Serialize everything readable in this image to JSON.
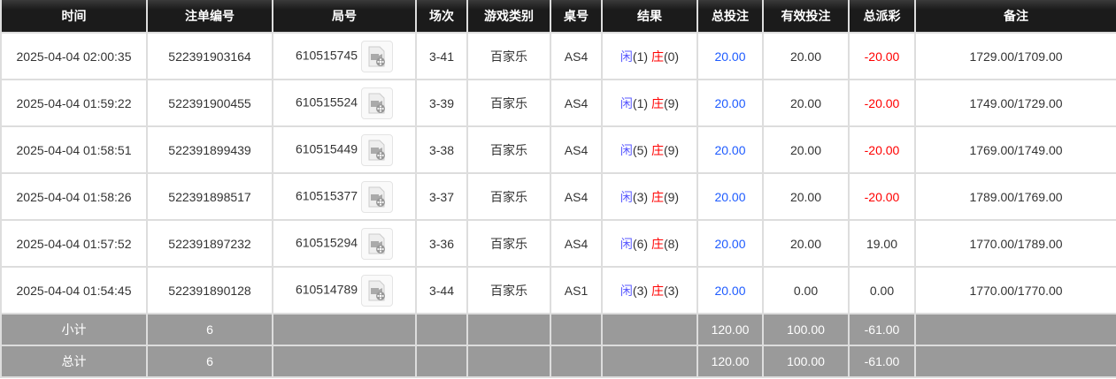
{
  "headers": [
    "时间",
    "注单编号",
    "局号",
    "场次",
    "游戏类别",
    "桌号",
    "结果",
    "总投注",
    "有效投注",
    "总派彩",
    "备注"
  ],
  "rows": [
    {
      "time": "2025-04-04 02:00:35",
      "bet_id": "522391903164",
      "round": "610515745",
      "shoe": "3-41",
      "game": "百家乐",
      "table": "AS4",
      "player_label": "闲",
      "player": "(1)",
      "banker_label": "庄",
      "banker": "(0)",
      "total_bet": "20.00",
      "valid_bet": "20.00",
      "payout": "-20.00",
      "note": "1729.00/1709.00"
    },
    {
      "time": "2025-04-04 01:59:22",
      "bet_id": "522391900455",
      "round": "610515524",
      "shoe": "3-39",
      "game": "百家乐",
      "table": "AS4",
      "player_label": "闲",
      "player": "(1)",
      "banker_label": "庄",
      "banker": "(9)",
      "total_bet": "20.00",
      "valid_bet": "20.00",
      "payout": "-20.00",
      "note": "1749.00/1729.00"
    },
    {
      "time": "2025-04-04 01:58:51",
      "bet_id": "522391899439",
      "round": "610515449",
      "shoe": "3-38",
      "game": "百家乐",
      "table": "AS4",
      "player_label": "闲",
      "player": "(5)",
      "banker_label": "庄",
      "banker": "(9)",
      "total_bet": "20.00",
      "valid_bet": "20.00",
      "payout": "-20.00",
      "note": "1769.00/1749.00"
    },
    {
      "time": "2025-04-04 01:58:26",
      "bet_id": "522391898517",
      "round": "610515377",
      "shoe": "3-37",
      "game": "百家乐",
      "table": "AS4",
      "player_label": "闲",
      "player": "(3)",
      "banker_label": "庄",
      "banker": "(9)",
      "total_bet": "20.00",
      "valid_bet": "20.00",
      "payout": "-20.00",
      "note": "1789.00/1769.00"
    },
    {
      "time": "2025-04-04 01:57:52",
      "bet_id": "522391897232",
      "round": "610515294",
      "shoe": "3-36",
      "game": "百家乐",
      "table": "AS4",
      "player_label": "闲",
      "player": "(6)",
      "banker_label": "庄",
      "banker": "(8)",
      "total_bet": "20.00",
      "valid_bet": "20.00",
      "payout": "19.00",
      "note": "1770.00/1789.00"
    },
    {
      "time": "2025-04-04 01:54:45",
      "bet_id": "522391890128",
      "round": "610514789",
      "shoe": "3-44",
      "game": "百家乐",
      "table": "AS1",
      "player_label": "闲",
      "player": "(3)",
      "banker_label": "庄",
      "banker": "(3)",
      "total_bet": "20.00",
      "valid_bet": "0.00",
      "payout": "0.00",
      "note": "1770.00/1770.00"
    }
  ],
  "subtotal": {
    "label": "小计",
    "count": "6",
    "total_bet": "120.00",
    "valid_bet": "100.00",
    "payout": "-61.00"
  },
  "total": {
    "label": "总计",
    "count": "6",
    "total_bet": "120.00",
    "valid_bet": "100.00",
    "payout": "-61.00"
  },
  "colors": {
    "player": "#5a5aff",
    "banker": "#ff0000",
    "bet": "#1e5bff",
    "negative": "#ff0000",
    "summary_bg": "#9a9a9a"
  },
  "icons": {
    "replay": "video-replay-icon"
  }
}
